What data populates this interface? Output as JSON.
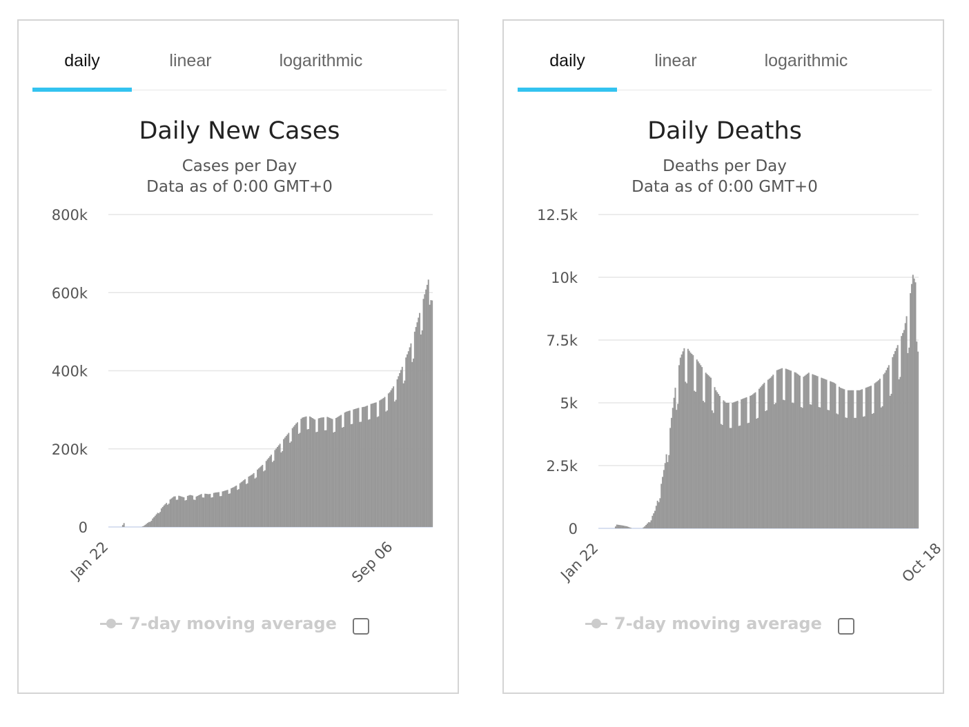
{
  "panels": [
    {
      "tabs": [
        "daily",
        "linear",
        "logarithmic"
      ],
      "active_tab": 0,
      "legend_label": "7-day moving average",
      "legend_checked": false
    },
    {
      "tabs": [
        "daily",
        "linear",
        "logarithmic"
      ],
      "active_tab": 0,
      "legend_label": "7-day moving average",
      "legend_checked": false
    }
  ],
  "colors": {
    "bar": "#999999",
    "grid": "#e6e6e6",
    "accent": "#33c3f0",
    "legend_inactive": "#cccccc"
  },
  "chart_data": [
    {
      "type": "bar",
      "title": "Daily New Cases",
      "subtitle": [
        "Cases per Day",
        "Data as of 0:00 GMT+0"
      ],
      "ylim": [
        0,
        800000
      ],
      "y_ticks": [
        0,
        200000,
        400000,
        600000,
        800000
      ],
      "y_tick_labels": [
        "0",
        "200k",
        "400k",
        "600k",
        "800k"
      ],
      "x_tick_labels": [
        "Jan 22",
        "Sep 06"
      ],
      "x_tick_positions": [
        0,
        228
      ],
      "grid": true,
      "legend": "bottom",
      "series": [
        {
          "points": [
            [
              0,
              0
            ],
            [
              10,
              0
            ],
            [
              12,
              10000
            ],
            [
              13,
              0
            ],
            [
              26,
              0
            ],
            [
              28,
              3000
            ],
            [
              30,
              8000
            ],
            [
              33,
              15000
            ],
            [
              36,
              25000
            ],
            [
              40,
              40000
            ],
            [
              44,
              55000
            ],
            [
              48,
              68000
            ],
            [
              52,
              78000
            ],
            [
              56,
              80000
            ],
            [
              60,
              76000
            ],
            [
              65,
              82000
            ],
            [
              70,
              78000
            ],
            [
              75,
              86000
            ],
            [
              80,
              84000
            ],
            [
              85,
              88000
            ],
            [
              90,
              90000
            ],
            [
              95,
              95000
            ],
            [
              100,
              102000
            ],
            [
              105,
              112000
            ],
            [
              110,
              125000
            ],
            [
              115,
              135000
            ],
            [
              120,
              150000
            ],
            [
              125,
              165000
            ],
            [
              130,
              185000
            ],
            [
              135,
              205000
            ],
            [
              140,
              225000
            ],
            [
              145,
              245000
            ],
            [
              150,
              265000
            ],
            [
              155,
              280000
            ],
            [
              160,
              285000
            ],
            [
              165,
              275000
            ],
            [
              170,
              280000
            ],
            [
              175,
              282000
            ],
            [
              180,
              275000
            ],
            [
              185,
              285000
            ],
            [
              190,
              295000
            ],
            [
              195,
              300000
            ],
            [
              200,
              305000
            ],
            [
              205,
              308000
            ],
            [
              210,
              315000
            ],
            [
              215,
              320000
            ],
            [
              220,
              330000
            ],
            [
              225,
              345000
            ],
            [
              230,
              370000
            ],
            [
              235,
              410000
            ],
            [
              240,
              450000
            ],
            [
              245,
              500000
            ],
            [
              250,
              560000
            ],
            [
              255,
              620000
            ],
            [
              258,
              660000
            ],
            [
              259,
              580000
            ]
          ],
          "weekly_dip": 0.12
        }
      ]
    },
    {
      "type": "bar",
      "title": "Daily Deaths",
      "subtitle": [
        "Deaths per Day",
        "Data as of 0:00 GMT+0"
      ],
      "ylim": [
        0,
        12500
      ],
      "y_ticks": [
        0,
        2500,
        5000,
        7500,
        10000,
        12500
      ],
      "y_tick_labels": [
        "0",
        "2.5k",
        "5k",
        "7.5k",
        "10k",
        "12.5k"
      ],
      "x_tick_labels": [
        "Jan 22",
        "Oct 18"
      ],
      "x_tick_positions": [
        0,
        270
      ],
      "grid": true,
      "legend": "bottom",
      "series": [
        {
          "points": [
            [
              0,
              0
            ],
            [
              12,
              0
            ],
            [
              14,
              150
            ],
            [
              18,
              120
            ],
            [
              22,
              80
            ],
            [
              26,
              0
            ],
            [
              34,
              0
            ],
            [
              36,
              80
            ],
            [
              40,
              300
            ],
            [
              44,
              700
            ],
            [
              48,
              1500
            ],
            [
              52,
              2600
            ],
            [
              56,
              4000
            ],
            [
              60,
              5600
            ],
            [
              64,
              6800
            ],
            [
              68,
              7300
            ],
            [
              72,
              7000
            ],
            [
              76,
              6800
            ],
            [
              80,
              6500
            ],
            [
              84,
              6200
            ],
            [
              88,
              6000
            ],
            [
              92,
              5500
            ],
            [
              96,
              5200
            ],
            [
              100,
              5000
            ],
            [
              105,
              5000
            ],
            [
              110,
              5100
            ],
            [
              115,
              5200
            ],
            [
              120,
              5300
            ],
            [
              125,
              5500
            ],
            [
              130,
              5800
            ],
            [
              135,
              6000
            ],
            [
              140,
              6300
            ],
            [
              145,
              6400
            ],
            [
              150,
              6300
            ],
            [
              155,
              6200
            ],
            [
              160,
              6000
            ],
            [
              165,
              6200
            ],
            [
              170,
              6100
            ],
            [
              175,
              6000
            ],
            [
              180,
              5900
            ],
            [
              185,
              5800
            ],
            [
              190,
              5600
            ],
            [
              195,
              5500
            ],
            [
              200,
              5500
            ],
            [
              205,
              5500
            ],
            [
              210,
              5600
            ],
            [
              215,
              5700
            ],
            [
              220,
              5900
            ],
            [
              225,
              6200
            ],
            [
              230,
              6700
            ],
            [
              235,
              7300
            ],
            [
              240,
              7900
            ],
            [
              244,
              9000
            ],
            [
              247,
              10100
            ],
            [
              249,
              9800
            ],
            [
              251,
              8800
            ]
          ],
          "weekly_dip": 0.2
        }
      ]
    }
  ]
}
